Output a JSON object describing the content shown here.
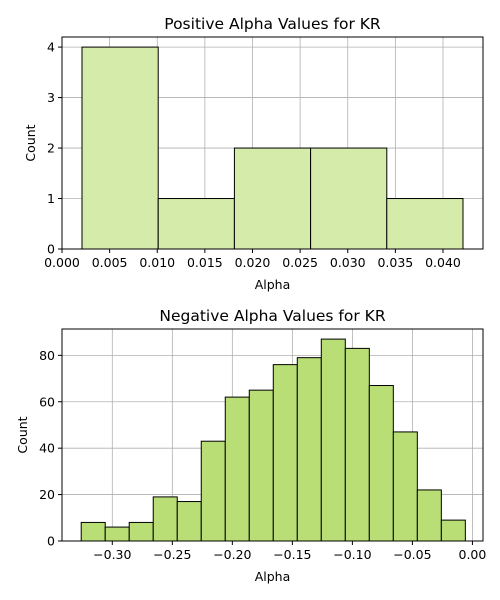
{
  "chart_data": [
    {
      "type": "bar",
      "histogram": true,
      "title": "Positive Alpha Values for KR",
      "xlabel": "Alpha",
      "ylabel": "Count",
      "xlim": [
        0.0,
        0.0442
      ],
      "ylim": [
        0,
        4.2
      ],
      "xticks": [
        0.0,
        0.005,
        0.01,
        0.015,
        0.02,
        0.025,
        0.03,
        0.035,
        0.04
      ],
      "xtick_labels": [
        "0.000",
        "0.005",
        "0.010",
        "0.015",
        "0.020",
        "0.025",
        "0.030",
        "0.035",
        "0.040"
      ],
      "yticks": [
        0,
        1,
        2,
        3,
        4
      ],
      "ytick_labels": [
        "0",
        "1",
        "2",
        "3",
        "4"
      ],
      "bin_edges": [
        0.0021,
        0.0101,
        0.0181,
        0.0261,
        0.0341,
        0.0421
      ],
      "values": [
        4,
        1,
        2,
        2,
        1
      ],
      "grid": true,
      "bar_color": "#d4ebaa",
      "edge_color": "#000000"
    },
    {
      "type": "bar",
      "histogram": true,
      "title": "Negative Alpha Values for KR",
      "xlabel": "Alpha",
      "ylabel": "Count",
      "xlim": [
        -0.3419,
        0.0088
      ],
      "ylim": [
        0,
        91.35
      ],
      "xticks": [
        -0.3,
        -0.25,
        -0.2,
        -0.15,
        -0.1,
        -0.05,
        0.0
      ],
      "xtick_labels": [
        "−0.30",
        "−0.25",
        "−0.20",
        "−0.15",
        "−0.10",
        "−0.05",
        "0.00"
      ],
      "yticks": [
        0,
        20,
        40,
        60,
        80
      ],
      "ytick_labels": [
        "0",
        "20",
        "40",
        "60",
        "80"
      ],
      "bin_edges": [
        -0.3259,
        -0.3059,
        -0.2859,
        -0.2659,
        -0.2459,
        -0.2259,
        -0.2059,
        -0.1859,
        -0.1659,
        -0.1459,
        -0.1259,
        -0.1059,
        -0.0859,
        -0.0659,
        -0.0459,
        -0.0259,
        -0.0059
      ],
      "values": [
        8,
        6,
        8,
        19,
        17,
        43,
        62,
        65,
        76,
        79,
        87,
        83,
        67,
        47,
        22,
        9
      ],
      "grid": true,
      "bar_color": "#b8de75",
      "edge_color": "#000000"
    }
  ]
}
